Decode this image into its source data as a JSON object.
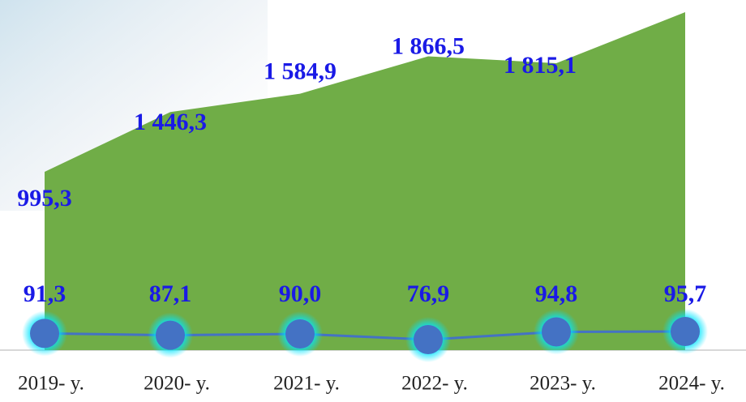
{
  "chart_data": {
    "type": "area-line",
    "categories": [
      "2019- y.",
      "2020- y.",
      "2021- y.",
      "2022- y.",
      "2023- y.",
      "2024- y."
    ],
    "series": [
      {
        "type": "area",
        "color": "#70ad47",
        "values": [
          995.3,
          1446.3,
          1584.9,
          1866.5,
          1815.1,
          2200
        ],
        "value_labels": [
          "995,3",
          "1 446,3",
          "1 584,9",
          "1 866,5",
          "1 815,1",
          null
        ]
      },
      {
        "type": "line",
        "color": "#4472c4",
        "values": [
          91.3,
          87.1,
          90.0,
          76.9,
          94.8,
          95.7
        ],
        "value_labels": [
          "91,3",
          "87,1",
          "90,0",
          "76,9",
          "94,8",
          "95,7"
        ]
      }
    ]
  }
}
